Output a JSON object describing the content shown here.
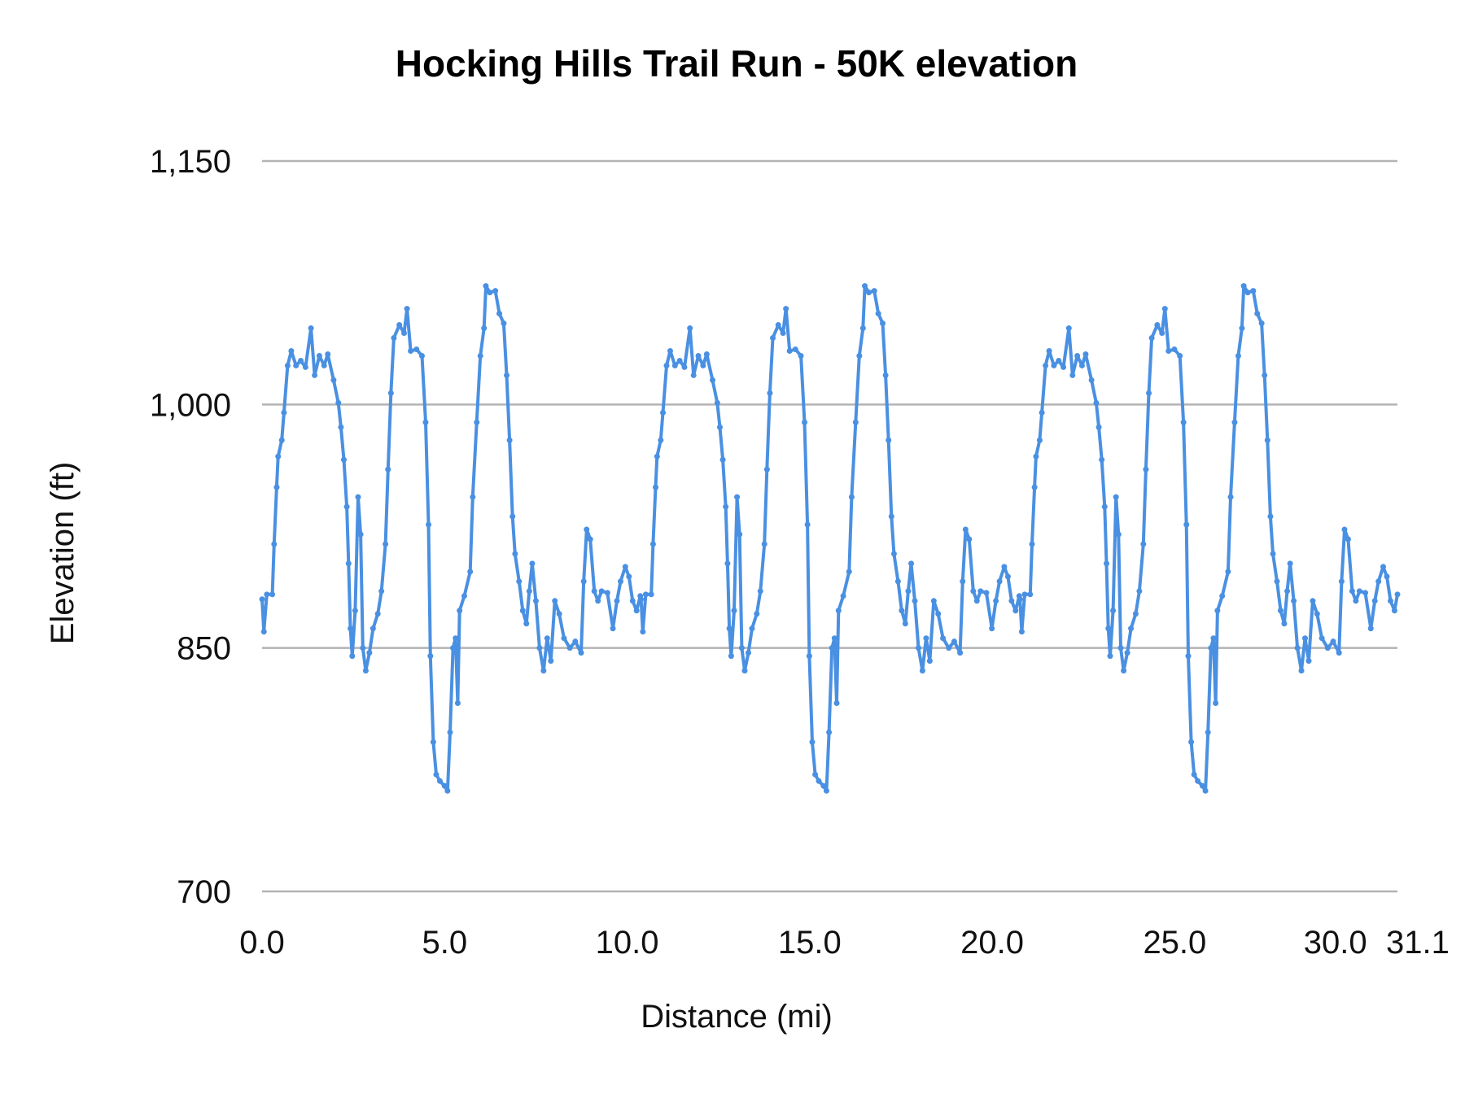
{
  "chart_data": {
    "type": "line",
    "title": "Hocking Hills Trail Run - 50K elevation",
    "xlabel": "Distance (mi)",
    "ylabel": "Elevation (ft)",
    "xlim": [
      0,
      31.1
    ],
    "ylim": [
      700,
      1150
    ],
    "x_ticks": [
      "0.0",
      "5.0",
      "10.0",
      "15.0",
      "20.0",
      "25.0",
      "30.0",
      "31.1"
    ],
    "x_tick_values": [
      0,
      5,
      10,
      15,
      20,
      25,
      30,
      31.1
    ],
    "y_ticks": [
      "700",
      "850",
      "1,000",
      "1,150"
    ],
    "y_tick_values": [
      700,
      850,
      1000,
      1150
    ],
    "grid": "horizontal",
    "markers": true,
    "color": "#4a90e2",
    "grid_color": "#b3b3b3",
    "series": [
      {
        "points": [
          [
            0.0,
            880
          ],
          [
            0.05,
            860
          ],
          [
            0.13,
            883
          ],
          [
            0.28,
            883
          ],
          [
            0.33,
            914
          ],
          [
            0.4,
            949
          ],
          [
            0.44,
            968
          ],
          [
            0.54,
            978
          ],
          [
            0.6,
            995
          ],
          [
            0.7,
            1024
          ],
          [
            0.8,
            1033
          ],
          [
            0.93,
            1024
          ],
          [
            1.06,
            1027
          ],
          [
            1.19,
            1023
          ],
          [
            1.34,
            1047
          ],
          [
            1.44,
            1018
          ],
          [
            1.57,
            1030
          ],
          [
            1.7,
            1024
          ],
          [
            1.8,
            1031
          ],
          [
            1.96,
            1015
          ],
          [
            2.09,
            1001
          ],
          [
            2.16,
            986
          ],
          [
            2.24,
            966
          ],
          [
            2.32,
            937
          ],
          [
            2.37,
            902
          ],
          [
            2.42,
            862
          ],
          [
            2.47,
            845
          ],
          [
            2.55,
            873
          ],
          [
            2.63,
            943
          ],
          [
            2.7,
            920
          ],
          [
            2.76,
            850
          ],
          [
            2.84,
            836
          ],
          [
            2.94,
            847
          ],
          [
            3.04,
            862
          ],
          [
            3.17,
            871
          ],
          [
            3.27,
            885
          ],
          [
            3.38,
            914
          ],
          [
            3.45,
            960
          ],
          [
            3.53,
            1007
          ],
          [
            3.61,
            1041
          ],
          [
            3.76,
            1049
          ],
          [
            3.89,
            1044
          ],
          [
            3.97,
            1059
          ],
          [
            4.07,
            1033
          ],
          [
            4.23,
            1034
          ],
          [
            4.38,
            1030
          ],
          [
            4.48,
            989
          ],
          [
            4.56,
            926
          ],
          [
            4.61,
            845
          ],
          [
            4.69,
            792
          ],
          [
            4.77,
            772
          ],
          [
            4.87,
            768
          ],
          [
            5.0,
            765
          ],
          [
            5.08,
            762
          ],
          [
            5.15,
            798
          ],
          [
            5.23,
            850
          ],
          [
            5.3,
            856
          ],
          [
            5.36,
            816
          ],
          [
            5.41,
            873
          ],
          [
            5.54,
            882
          ],
          [
            5.7,
            897
          ],
          [
            5.77,
            943
          ],
          [
            5.88,
            989
          ],
          [
            5.98,
            1030
          ],
          [
            6.08,
            1047
          ],
          [
            6.13,
            1073
          ],
          [
            6.24,
            1069
          ],
          [
            6.39,
            1070
          ],
          [
            6.5,
            1056
          ],
          [
            6.62,
            1050
          ],
          [
            6.7,
            1018
          ],
          [
            6.78,
            978
          ],
          [
            6.86,
            931
          ],
          [
            6.93,
            908
          ],
          [
            7.04,
            891
          ],
          [
            7.14,
            873
          ],
          [
            7.24,
            865
          ],
          [
            7.32,
            885
          ],
          [
            7.4,
            902
          ],
          [
            7.5,
            879
          ],
          [
            7.6,
            850
          ],
          [
            7.71,
            836
          ],
          [
            7.81,
            856
          ],
          [
            7.91,
            842
          ],
          [
            8.02,
            879
          ],
          [
            8.14,
            871
          ],
          [
            8.27,
            856
          ],
          [
            8.43,
            850
          ],
          [
            8.58,
            854
          ],
          [
            8.74,
            847
          ],
          [
            8.81,
            891
          ],
          [
            8.89,
            923
          ],
          [
            8.99,
            917
          ],
          [
            9.1,
            885
          ],
          [
            9.2,
            879
          ],
          [
            9.3,
            885
          ],
          [
            9.46,
            884
          ],
          [
            9.61,
            862
          ],
          [
            9.72,
            879
          ],
          [
            9.82,
            891
          ],
          [
            9.95,
            900
          ],
          [
            10.05,
            894
          ],
          [
            10.15,
            879
          ],
          [
            10.26,
            873
          ],
          [
            10.36,
            882
          ],
          [
            10.38,
            880
          ],
          [
            10.43,
            860
          ],
          [
            10.51,
            883
          ],
          [
            10.66,
            883
          ],
          [
            10.71,
            914
          ],
          [
            10.78,
            949
          ],
          [
            10.82,
            968
          ],
          [
            10.92,
            978
          ],
          [
            10.98,
            995
          ],
          [
            11.08,
            1024
          ],
          [
            11.18,
            1033
          ],
          [
            11.31,
            1024
          ],
          [
            11.44,
            1027
          ],
          [
            11.57,
            1023
          ],
          [
            11.72,
            1047
          ],
          [
            11.82,
            1018
          ],
          [
            11.95,
            1030
          ],
          [
            12.08,
            1024
          ],
          [
            12.18,
            1031
          ],
          [
            12.34,
            1015
          ],
          [
            12.47,
            1001
          ],
          [
            12.54,
            986
          ],
          [
            12.62,
            966
          ],
          [
            12.7,
            937
          ],
          [
            12.75,
            902
          ],
          [
            12.8,
            862
          ],
          [
            12.85,
            845
          ],
          [
            12.93,
            873
          ],
          [
            13.01,
            943
          ],
          [
            13.08,
            920
          ],
          [
            13.14,
            850
          ],
          [
            13.22,
            836
          ],
          [
            13.32,
            847
          ],
          [
            13.42,
            862
          ],
          [
            13.55,
            871
          ],
          [
            13.65,
            885
          ],
          [
            13.76,
            914
          ],
          [
            13.83,
            960
          ],
          [
            13.91,
            1007
          ],
          [
            13.99,
            1041
          ],
          [
            14.14,
            1049
          ],
          [
            14.27,
            1044
          ],
          [
            14.35,
            1059
          ],
          [
            14.45,
            1033
          ],
          [
            14.61,
            1034
          ],
          [
            14.76,
            1030
          ],
          [
            14.86,
            989
          ],
          [
            14.94,
            926
          ],
          [
            14.99,
            845
          ],
          [
            15.07,
            792
          ],
          [
            15.15,
            772
          ],
          [
            15.25,
            768
          ],
          [
            15.38,
            765
          ],
          [
            15.46,
            762
          ],
          [
            15.53,
            798
          ],
          [
            15.61,
            850
          ],
          [
            15.68,
            856
          ],
          [
            15.74,
            816
          ],
          [
            15.79,
            873
          ],
          [
            15.92,
            882
          ],
          [
            16.08,
            897
          ],
          [
            16.15,
            943
          ],
          [
            16.26,
            989
          ],
          [
            16.36,
            1030
          ],
          [
            16.46,
            1047
          ],
          [
            16.51,
            1073
          ],
          [
            16.62,
            1069
          ],
          [
            16.77,
            1070
          ],
          [
            16.88,
            1056
          ],
          [
            17.0,
            1050
          ],
          [
            17.08,
            1018
          ],
          [
            17.16,
            978
          ],
          [
            17.24,
            931
          ],
          [
            17.31,
            908
          ],
          [
            17.42,
            891
          ],
          [
            17.52,
            873
          ],
          [
            17.62,
            865
          ],
          [
            17.7,
            885
          ],
          [
            17.78,
            902
          ],
          [
            17.88,
            879
          ],
          [
            17.98,
            850
          ],
          [
            18.09,
            836
          ],
          [
            18.19,
            856
          ],
          [
            18.29,
            842
          ],
          [
            18.4,
            879
          ],
          [
            18.52,
            871
          ],
          [
            18.65,
            856
          ],
          [
            18.81,
            850
          ],
          [
            18.96,
            854
          ],
          [
            19.12,
            847
          ],
          [
            19.19,
            891
          ],
          [
            19.27,
            923
          ],
          [
            19.37,
            917
          ],
          [
            19.48,
            885
          ],
          [
            19.58,
            879
          ],
          [
            19.68,
            885
          ],
          [
            19.84,
            884
          ],
          [
            19.99,
            862
          ],
          [
            20.1,
            879
          ],
          [
            20.2,
            891
          ],
          [
            20.33,
            900
          ],
          [
            20.43,
            894
          ],
          [
            20.53,
            879
          ],
          [
            20.64,
            873
          ],
          [
            20.74,
            882
          ],
          [
            20.76,
            880
          ],
          [
            20.81,
            860
          ],
          [
            20.89,
            883
          ],
          [
            21.04,
            883
          ],
          [
            21.09,
            914
          ],
          [
            21.16,
            949
          ],
          [
            21.2,
            968
          ],
          [
            21.3,
            978
          ],
          [
            21.36,
            995
          ],
          [
            21.46,
            1024
          ],
          [
            21.56,
            1033
          ],
          [
            21.69,
            1024
          ],
          [
            21.82,
            1027
          ],
          [
            21.95,
            1023
          ],
          [
            22.1,
            1047
          ],
          [
            22.2,
            1018
          ],
          [
            22.33,
            1030
          ],
          [
            22.46,
            1024
          ],
          [
            22.56,
            1031
          ],
          [
            22.72,
            1015
          ],
          [
            22.85,
            1001
          ],
          [
            22.92,
            986
          ],
          [
            23.0,
            966
          ],
          [
            23.08,
            937
          ],
          [
            23.13,
            902
          ],
          [
            23.18,
            862
          ],
          [
            23.23,
            845
          ],
          [
            23.31,
            873
          ],
          [
            23.39,
            943
          ],
          [
            23.46,
            920
          ],
          [
            23.52,
            850
          ],
          [
            23.6,
            836
          ],
          [
            23.7,
            847
          ],
          [
            23.8,
            862
          ],
          [
            23.93,
            871
          ],
          [
            24.03,
            885
          ],
          [
            24.14,
            914
          ],
          [
            24.21,
            960
          ],
          [
            24.29,
            1007
          ],
          [
            24.37,
            1041
          ],
          [
            24.52,
            1049
          ],
          [
            24.65,
            1044
          ],
          [
            24.73,
            1059
          ],
          [
            24.83,
            1033
          ],
          [
            24.99,
            1034
          ],
          [
            25.14,
            1030
          ],
          [
            25.24,
            989
          ],
          [
            25.32,
            926
          ],
          [
            25.37,
            845
          ],
          [
            25.45,
            792
          ],
          [
            25.53,
            772
          ],
          [
            25.63,
            768
          ],
          [
            25.76,
            765
          ],
          [
            25.84,
            762
          ],
          [
            25.91,
            798
          ],
          [
            25.99,
            850
          ],
          [
            26.06,
            856
          ],
          [
            26.12,
            816
          ],
          [
            26.17,
            873
          ],
          [
            26.3,
            882
          ],
          [
            26.46,
            897
          ],
          [
            26.53,
            943
          ],
          [
            26.64,
            989
          ],
          [
            26.74,
            1030
          ],
          [
            26.84,
            1047
          ],
          [
            26.89,
            1073
          ],
          [
            27.0,
            1069
          ],
          [
            27.15,
            1070
          ],
          [
            27.26,
            1056
          ],
          [
            27.38,
            1050
          ],
          [
            27.46,
            1018
          ],
          [
            27.54,
            978
          ],
          [
            27.62,
            931
          ],
          [
            27.69,
            908
          ],
          [
            27.8,
            891
          ],
          [
            27.9,
            873
          ],
          [
            28.0,
            865
          ],
          [
            28.08,
            885
          ],
          [
            28.16,
            902
          ],
          [
            28.26,
            879
          ],
          [
            28.36,
            850
          ],
          [
            28.47,
            836
          ],
          [
            28.57,
            856
          ],
          [
            28.67,
            842
          ],
          [
            28.78,
            879
          ],
          [
            28.9,
            871
          ],
          [
            29.03,
            856
          ],
          [
            29.19,
            850
          ],
          [
            29.34,
            854
          ],
          [
            29.5,
            847
          ],
          [
            29.57,
            891
          ],
          [
            29.65,
            923
          ],
          [
            29.75,
            917
          ],
          [
            29.86,
            885
          ],
          [
            29.96,
            879
          ],
          [
            30.06,
            885
          ],
          [
            30.22,
            884
          ],
          [
            30.37,
            862
          ],
          [
            30.48,
            879
          ],
          [
            30.58,
            891
          ],
          [
            30.71,
            900
          ],
          [
            30.81,
            894
          ],
          [
            30.91,
            879
          ],
          [
            31.02,
            873
          ],
          [
            31.1,
            883
          ]
        ]
      }
    ]
  }
}
